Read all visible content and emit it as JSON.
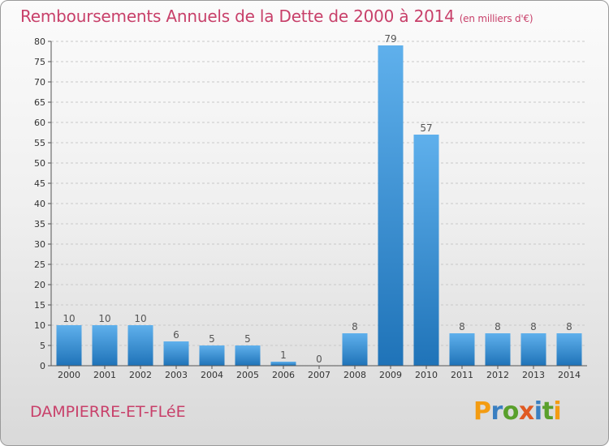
{
  "header": {
    "title": "Remboursements Annuels de la Dette de 2000 à 2014",
    "unit": "(en milliers d'€)"
  },
  "footer": {
    "commune": "DAMPIERRE-ET-FLéE",
    "logo_text": "Proxiti"
  },
  "colors": {
    "title": "#c8406a",
    "bar_top": "#5fb0ec",
    "bar_bottom": "#1f73b8",
    "gridline": "#c8c8c8"
  },
  "logo_letter_colors": [
    "#f39c12",
    "#3a7fc1",
    "#5aa02c",
    "#e05a22",
    "#3a7fc1",
    "#5aa02c",
    "#f39c12"
  ],
  "chart_data": {
    "type": "bar",
    "title": "Remboursements Annuels de la Dette de 2000 à 2014",
    "subtitle": "(en milliers d'€)",
    "xlabel": "",
    "ylabel": "",
    "categories": [
      "2000",
      "2001",
      "2002",
      "2003",
      "2004",
      "2005",
      "2006",
      "2007",
      "2008",
      "2009",
      "2010",
      "2011",
      "2012",
      "2013",
      "2014"
    ],
    "values": [
      10,
      10,
      10,
      6,
      5,
      5,
      1,
      0,
      8,
      79,
      57,
      8,
      8,
      8,
      8
    ],
    "ylim": [
      0,
      80
    ],
    "yticks": [
      0,
      5,
      10,
      15,
      20,
      25,
      30,
      35,
      40,
      45,
      50,
      55,
      60,
      65,
      70,
      75,
      80
    ],
    "grid": true,
    "legend": "none"
  }
}
